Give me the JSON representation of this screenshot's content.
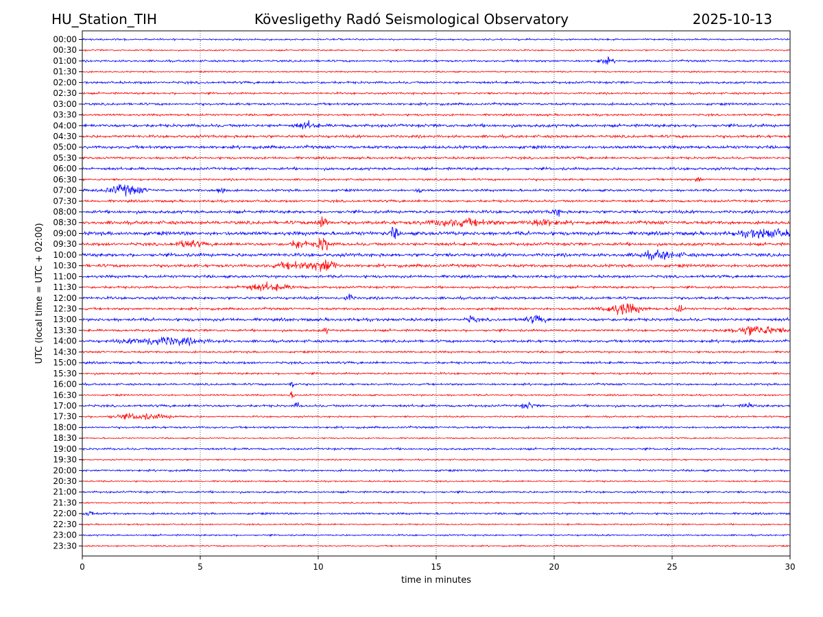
{
  "chart_data": {
    "type": "line",
    "title_left": "HU_Station_TIH",
    "title_center": "Kövesligethy Radó Seismological Observatory",
    "title_right": "2025-10-13",
    "xlabel": "time in minutes",
    "ylabel": "UTC (local time = UTC + 02:00)",
    "xlim": [
      0,
      30
    ],
    "xticks": [
      0,
      5,
      10,
      15,
      20,
      25,
      30
    ],
    "vertical_gridlines": [
      5,
      10,
      15,
      20,
      25
    ],
    "row_labels": [
      "00:00",
      "00:30",
      "01:00",
      "01:30",
      "02:00",
      "02:30",
      "03:00",
      "03:30",
      "04:00",
      "04:30",
      "05:00",
      "05:30",
      "06:00",
      "06:30",
      "07:00",
      "07:30",
      "08:00",
      "08:30",
      "09:00",
      "09:30",
      "10:00",
      "10:30",
      "11:00",
      "11:30",
      "12:00",
      "12:30",
      "13:00",
      "13:30",
      "14:00",
      "14:30",
      "15:00",
      "15:30",
      "16:00",
      "16:30",
      "17:00",
      "17:30",
      "18:00",
      "18:30",
      "19:00",
      "19:30",
      "20:00",
      "20:30",
      "21:00",
      "21:30",
      "22:00",
      "22:30",
      "23:00",
      "23:30"
    ],
    "trace_colors": [
      "#0000ff",
      "#ff0000"
    ],
    "base_noise": [
      0.25,
      0.22,
      0.3,
      0.22,
      0.35,
      0.3,
      0.35,
      0.3,
      0.45,
      0.4,
      0.45,
      0.35,
      0.4,
      0.3,
      0.35,
      0.35,
      0.45,
      0.5,
      0.55,
      0.45,
      0.5,
      0.45,
      0.4,
      0.35,
      0.4,
      0.35,
      0.45,
      0.35,
      0.4,
      0.3,
      0.35,
      0.3,
      0.3,
      0.25,
      0.35,
      0.25,
      0.3,
      0.2,
      0.3,
      0.22,
      0.3,
      0.22,
      0.3,
      0.22,
      0.3,
      0.22,
      0.25,
      0.22
    ],
    "events": [
      {
        "row": 2,
        "minute": 22.2,
        "amplitude": 0.8,
        "duration_min": 0.6
      },
      {
        "row": 8,
        "minute": 9.5,
        "amplitude": 0.9,
        "duration_min": 0.8
      },
      {
        "row": 13,
        "minute": 26.1,
        "amplitude": 1.4,
        "duration_min": 0.2
      },
      {
        "row": 14,
        "minute": 1.8,
        "amplitude": 1.5,
        "duration_min": 1.5
      },
      {
        "row": 14,
        "minute": 5.9,
        "amplitude": 1.2,
        "duration_min": 0.4
      },
      {
        "row": 14,
        "minute": 14.3,
        "amplitude": 1.1,
        "duration_min": 0.2
      },
      {
        "row": 16,
        "minute": 20.1,
        "amplitude": 0.9,
        "duration_min": 0.4
      },
      {
        "row": 17,
        "minute": 10.2,
        "amplitude": 2.5,
        "duration_min": 0.4
      },
      {
        "row": 17,
        "minute": 16.0,
        "amplitude": 1.0,
        "duration_min": 2.5
      },
      {
        "row": 17,
        "minute": 19.5,
        "amplitude": 1.0,
        "duration_min": 1.2
      },
      {
        "row": 18,
        "minute": 13.2,
        "amplitude": 2.0,
        "duration_min": 0.3
      },
      {
        "row": 18,
        "minute": 29.0,
        "amplitude": 1.2,
        "duration_min": 2.0
      },
      {
        "row": 19,
        "minute": 10.2,
        "amplitude": 2.6,
        "duration_min": 0.5
      },
      {
        "row": 19,
        "minute": 9.2,
        "amplitude": 1.3,
        "duration_min": 0.6
      },
      {
        "row": 19,
        "minute": 4.5,
        "amplitude": 1.0,
        "duration_min": 1.0
      },
      {
        "row": 20,
        "minute": 24.5,
        "amplitude": 1.1,
        "duration_min": 1.5
      },
      {
        "row": 21,
        "minute": 10.3,
        "amplitude": 2.2,
        "duration_min": 0.8
      },
      {
        "row": 21,
        "minute": 9.0,
        "amplitude": 1.0,
        "duration_min": 1.5
      },
      {
        "row": 23,
        "minute": 7.8,
        "amplitude": 1.0,
        "duration_min": 2.0
      },
      {
        "row": 24,
        "minute": 11.3,
        "amplitude": 1.3,
        "duration_min": 0.3
      },
      {
        "row": 25,
        "minute": 22.9,
        "amplitude": 1.6,
        "duration_min": 1.5
      },
      {
        "row": 25,
        "minute": 25.3,
        "amplitude": 1.3,
        "duration_min": 0.3
      },
      {
        "row": 26,
        "minute": 16.5,
        "amplitude": 0.9,
        "duration_min": 0.4
      },
      {
        "row": 26,
        "minute": 19.2,
        "amplitude": 0.9,
        "duration_min": 0.8
      },
      {
        "row": 27,
        "minute": 28.6,
        "amplitude": 1.4,
        "duration_min": 2.0
      },
      {
        "row": 27,
        "minute": 10.3,
        "amplitude": 1.0,
        "duration_min": 0.2
      },
      {
        "row": 28,
        "minute": 3.5,
        "amplitude": 1.2,
        "duration_min": 3.0
      },
      {
        "row": 32,
        "minute": 8.9,
        "amplitude": 1.5,
        "duration_min": 0.2
      },
      {
        "row": 33,
        "minute": 8.9,
        "amplitude": 0.9,
        "duration_min": 0.2
      },
      {
        "row": 34,
        "minute": 9.1,
        "amplitude": 0.9,
        "duration_min": 0.2
      },
      {
        "row": 34,
        "minute": 18.9,
        "amplitude": 0.8,
        "duration_min": 0.5
      },
      {
        "row": 34,
        "minute": 28.2,
        "amplitude": 0.8,
        "duration_min": 0.4
      },
      {
        "row": 35,
        "minute": 2.5,
        "amplitude": 0.8,
        "duration_min": 2.5
      },
      {
        "row": 44,
        "minute": 0.3,
        "amplitude": 0.8,
        "duration_min": 0.4
      }
    ]
  }
}
